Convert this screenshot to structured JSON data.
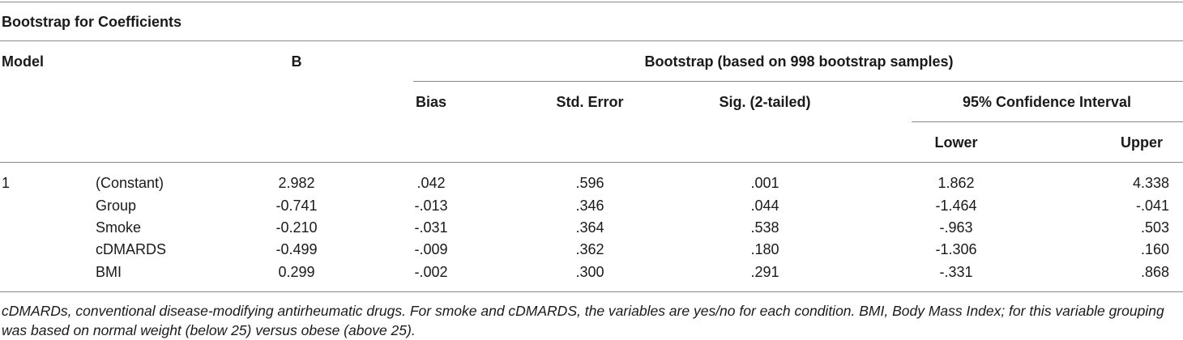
{
  "title": "Bootstrap for Coefficients",
  "headers": {
    "model": "Model",
    "b": "B",
    "bootstrap": "Bootstrap (based on 998 bootstrap samples)",
    "bias": "Bias",
    "std_error": "Std. Error",
    "sig": "Sig. (2-tailed)",
    "ci": "95% Confidence Interval",
    "lower": "Lower",
    "upper": "Upper"
  },
  "model_number": "1",
  "rows": [
    {
      "label": "(Constant)",
      "b": "2.982",
      "bias": ".042",
      "std_error": ".596",
      "sig": ".001",
      "lower": "1.862",
      "upper": "4.338"
    },
    {
      "label": "Group",
      "b": "-0.741",
      "bias": "-.013",
      "std_error": ".346",
      "sig": ".044",
      "lower": "-1.464",
      "upper": "-.041"
    },
    {
      "label": "Smoke",
      "b": "-0.210",
      "bias": "-.031",
      "std_error": ".364",
      "sig": ".538",
      "lower": "-.963",
      "upper": ".503"
    },
    {
      "label": "cDMARDS",
      "b": "-0.499",
      "bias": "-.009",
      "std_error": ".362",
      "sig": ".180",
      "lower": "-1.306",
      "upper": ".160"
    },
    {
      "label": "BMI",
      "b": "0.299",
      "bias": "-.002",
      "std_error": ".300",
      "sig": ".291",
      "lower": "-.331",
      "upper": ".868"
    }
  ],
  "footnote": "cDMARDs, conventional disease-modifying antirheumatic drugs. For smoke and cDMARDS, the variables are yes/no for each condition. BMI, Body Mass Index; for this variable grouping was based on normal weight (below 25) versus obese (above 25)."
}
